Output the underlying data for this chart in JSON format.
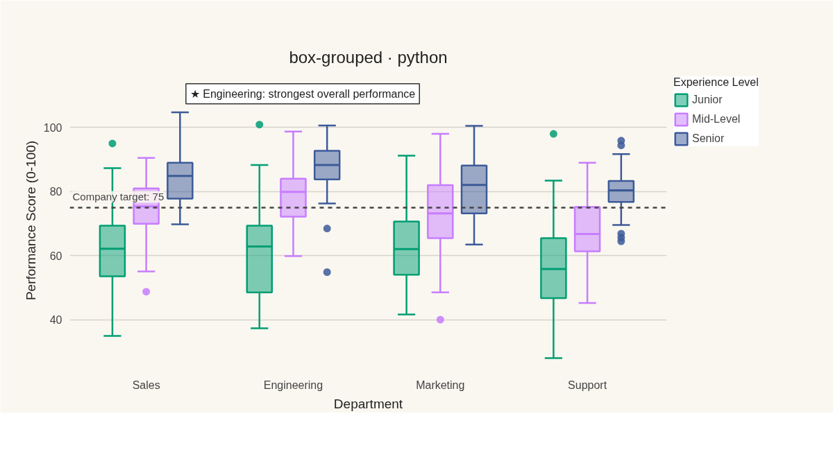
{
  "chart_data": {
    "type": "box",
    "title": "box-grouped · python",
    "xlabel": "Department",
    "ylabel": "Performance Score (0-100)",
    "legend_title": "Experience Level",
    "categories": [
      "Sales",
      "Engineering",
      "Marketing",
      "Support"
    ],
    "ylim": [
      24,
      118
    ],
    "yticks": [
      40,
      60,
      80,
      100
    ],
    "grid": "y",
    "legend": "top right",
    "annotations": [
      "★ Engineering: strongest overall performance"
    ],
    "ref_lines": [
      {
        "axis": "y",
        "value": 75,
        "label": "Company target: 75",
        "color": "#444444",
        "line_style": "dashed"
      }
    ],
    "series": [
      {
        "name": "Junior",
        "color": "#009e73",
        "boxes": [
          {
            "low": 35.0,
            "q1": 53.6,
            "median": 62.2,
            "q3": 69.4,
            "high": 87.3,
            "outliers": [
              95.0
            ]
          },
          {
            "low": 37.4,
            "q1": 48.6,
            "median": 62.9,
            "q3": 69.4,
            "high": 88.3,
            "outliers": [
              100.9
            ]
          },
          {
            "low": 41.7,
            "q1": 54.1,
            "median": 62.1,
            "q3": 70.7,
            "high": 91.2
          },
          {
            "low": 28.1,
            "q1": 46.8,
            "median": 55.9,
            "q3": 65.5,
            "high": 83.4,
            "outliers": [
              98.0
            ]
          }
        ]
      },
      {
        "name": "Mid-Level",
        "color": "#c77dff",
        "boxes": [
          {
            "low": 55.1,
            "q1": 70.0,
            "median": 75.4,
            "q3": 81.0,
            "high": 90.5,
            "outliers": [
              48.8
            ]
          },
          {
            "low": 59.9,
            "q1": 72.2,
            "median": 79.9,
            "q3": 84.0,
            "high": 98.7
          },
          {
            "low": 48.6,
            "q1": 65.5,
            "median": 73.2,
            "q3": 82.0,
            "high": 98.0,
            "outliers": [
              40.1
            ]
          },
          {
            "low": 45.3,
            "q1": 61.4,
            "median": 66.8,
            "q3": 75.2,
            "high": 89.0
          }
        ]
      },
      {
        "name": "Senior",
        "color": "#3c5a99",
        "boxes": [
          {
            "low": 69.8,
            "q1": 77.8,
            "median": 84.9,
            "q3": 89.0,
            "high": 104.7
          },
          {
            "low": 76.3,
            "q1": 83.8,
            "median": 88.3,
            "q3": 92.7,
            "high": 100.6,
            "outliers": [
              68.5,
              54.9
            ]
          },
          {
            "low": 63.5,
            "q1": 73.2,
            "median": 82.1,
            "q3": 88.1,
            "high": 100.5
          },
          {
            "low": 69.6,
            "q1": 76.8,
            "median": 80.4,
            "q3": 83.3,
            "high": 91.7,
            "outliers": [
              95.9,
              94.4,
              66.9,
              65.7,
              64.5
            ]
          }
        ]
      }
    ]
  }
}
